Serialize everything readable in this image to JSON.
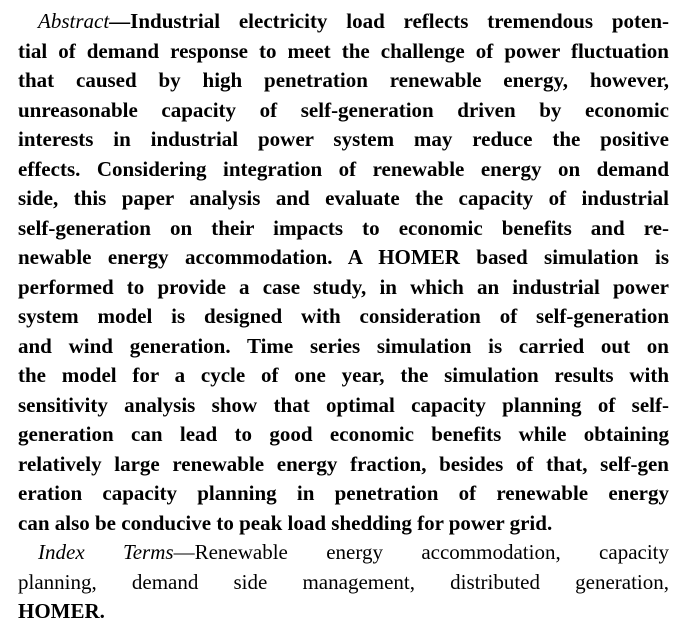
{
  "abstract": {
    "label": "Abstract",
    "dash": "—",
    "lines": [
      "Industrial electricity load reflects tremendous poten-",
      "tial of demand response to meet the challenge of power fluctuation",
      "that caused by high penetration renewable energy, however,",
      "unreasonable capacity of self-generation driven by economic",
      "interests in industrial power system may reduce the positive",
      "effects. Considering integration of renewable energy on demand",
      "side, this paper analysis and evaluate the capacity of industrial",
      "self-generation on their impacts to economic benefits and re-",
      "newable energy accommodation. A HOMER based simulation is",
      "performed to provide a case study, in which an industrial power",
      "system model is designed with consideration of self-generation",
      "and wind generation. Time series simulation is carried out on",
      "the model for a cycle of one year, the simulation results with",
      "sensitivity analysis show that optimal capacity planning of self-",
      "generation can lead to good economic benefits while obtaining",
      "relatively large renewable energy fraction, besides of that, self-gen",
      "eration capacity planning in penetration of renewable energy",
      "can also be conducive to peak load shedding for power grid."
    ]
  },
  "index_terms": {
    "label": "Index Terms",
    "dash": "—",
    "lines": [
      "Renewable energy accommodation, capacity",
      "planning, demand side management, distributed generation,",
      "HOMER."
    ]
  }
}
